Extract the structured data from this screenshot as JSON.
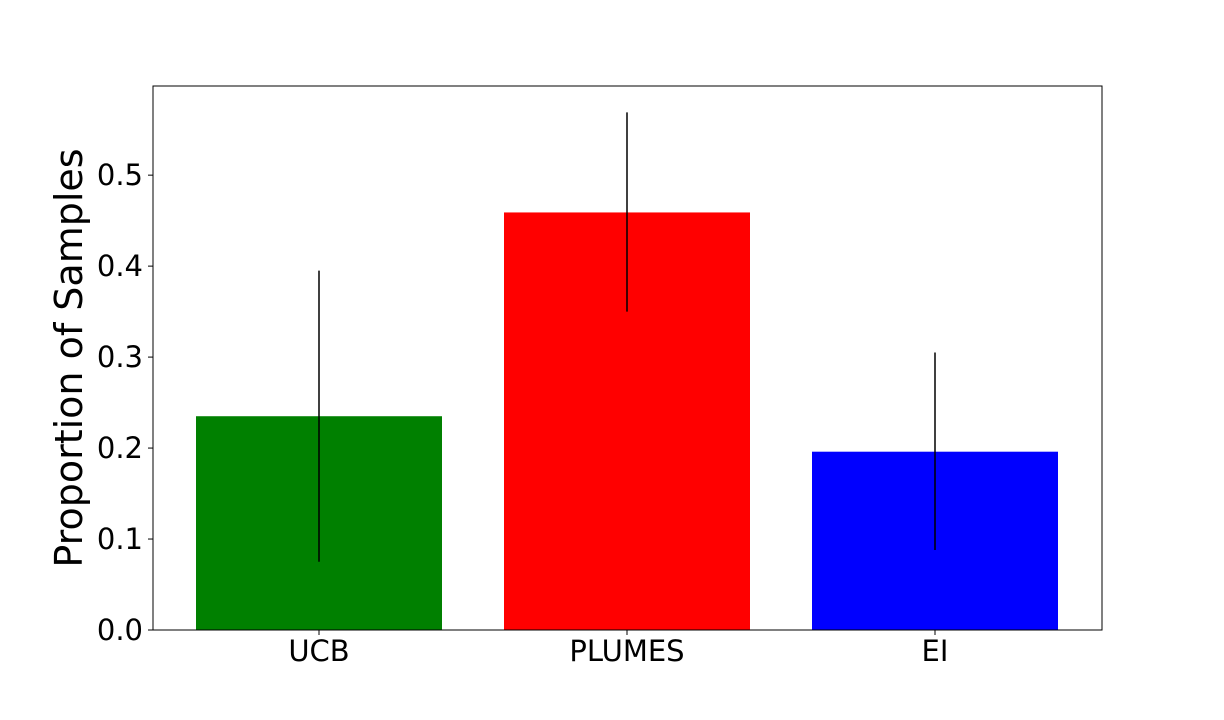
{
  "chart_data": {
    "type": "bar",
    "title": "",
    "xlabel": "",
    "ylabel": "Proportion of Samples",
    "categories": [
      "UCB",
      "PLUMES",
      "EI"
    ],
    "values": [
      0.235,
      0.459,
      0.196
    ],
    "error_low": [
      0.075,
      0.35,
      0.088
    ],
    "error_high": [
      0.395,
      0.569,
      0.305
    ],
    "colors": [
      "#008000",
      "#ff0000",
      "#0000ff"
    ],
    "ylim": [
      0,
      0.598
    ],
    "yticks": [
      0.0,
      0.1,
      0.2,
      0.3,
      0.4,
      0.5
    ],
    "ytick_labels": [
      "0.0",
      "0.1",
      "0.2",
      "0.3",
      "0.4",
      "0.5"
    ],
    "grid": false,
    "legend": "none"
  }
}
